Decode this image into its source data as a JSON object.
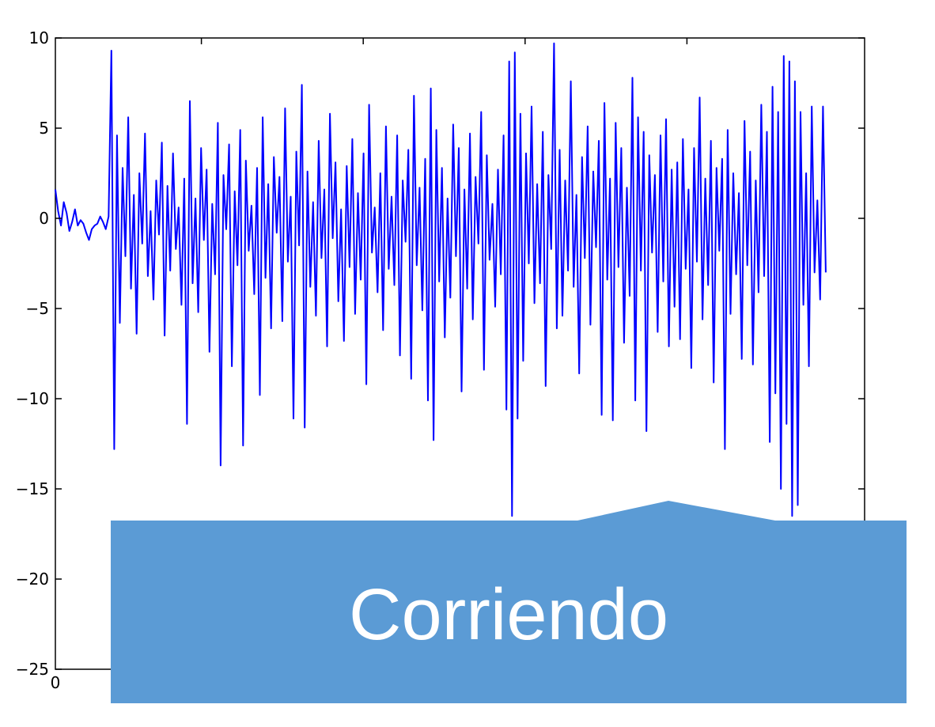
{
  "chart_data": {
    "type": "line",
    "title": "",
    "xlabel": "",
    "ylabel": "",
    "xlim": [
      0,
      1000
    ],
    "ylim": [
      -25,
      10
    ],
    "yticks": [
      10,
      5,
      0,
      -5,
      -10,
      -15,
      -20,
      -25
    ],
    "xticks": [
      0
    ],
    "ytick_labels": [
      "10",
      "5",
      "0",
      "−5",
      "−10",
      "−15",
      "−20",
      "−25"
    ],
    "xtick_labels": [
      "0"
    ],
    "grid": false,
    "legend": "none",
    "series": [
      {
        "color": "#0000ff",
        "description": "noisy signal; near 0 for first ~20 samples, then fluctuates roughly between -5 and 5 with spikes up to ~9.7 and down to ~-16.5",
        "values": [
          1.6,
          0.4,
          -0.4,
          0.9,
          0.3,
          -0.7,
          -0.2,
          0.5,
          -0.4,
          -0.1,
          -0.3,
          -0.8,
          -1.2,
          -0.6,
          -0.4,
          -0.3,
          0.1,
          -0.2,
          -0.6,
          0.1,
          9.3,
          -12.8,
          4.6,
          -5.8,
          2.8,
          -2.1,
          5.6,
          -3.9,
          1.3,
          -6.4,
          2.5,
          -1.4,
          4.7,
          -3.2,
          0.4,
          -4.5,
          2.1,
          -0.9,
          4.2,
          -6.5,
          1.8,
          -2.9,
          3.6,
          -1.7,
          0.6,
          -4.8,
          2.2,
          -11.4,
          6.5,
          -3.6,
          1.1,
          -5.2,
          3.9,
          -1.2,
          2.7,
          -7.4,
          0.8,
          -3.1,
          5.3,
          -13.7,
          2.4,
          -0.6,
          4.1,
          -8.2,
          1.5,
          -2.6,
          4.9,
          -12.6,
          3.2,
          -1.8,
          0.7,
          -4.2,
          2.8,
          -9.8,
          5.6,
          -3.3,
          1.9,
          -6.1,
          3.4,
          -0.8,
          2.3,
          -5.7,
          6.1,
          -2.4,
          1.2,
          -11.1,
          3.7,
          -1.5,
          7.4,
          -11.6,
          2.6,
          -3.8,
          0.9,
          -5.4,
          4.3,
          -2.2,
          1.6,
          -7.1,
          5.8,
          -1.1,
          3.1,
          -4.6,
          0.5,
          -6.8,
          2.9,
          -2.7,
          4.4,
          -5.3,
          1.4,
          -3.4,
          3.6,
          -9.2,
          6.3,
          -1.9,
          0.6,
          -4.1,
          2.5,
          -6.2,
          5.1,
          -2.8,
          1.2,
          -3.7,
          4.6,
          -7.6,
          2.1,
          -1.3,
          3.8,
          -8.9,
          6.8,
          -2.6,
          1.7,
          -5.1,
          3.3,
          -10.1,
          7.2,
          -12.3,
          4.9,
          -3.5,
          2.8,
          -6.6,
          1.1,
          -4.4,
          5.2,
          -2.1,
          3.9,
          -9.6,
          1.6,
          -3.9,
          4.7,
          -5.6,
          2.3,
          -1.4,
          5.9,
          -8.4,
          3.5,
          -2.3,
          0.8,
          -4.9,
          2.7,
          -3.1,
          4.6,
          -10.6,
          8.7,
          -16.5,
          9.2,
          -11.1,
          5.8,
          -7.9,
          3.6,
          -2.5,
          6.2,
          -4.7,
          1.9,
          -3.6,
          4.8,
          -9.3,
          2.4,
          -1.7,
          9.7,
          -6.1,
          3.8,
          -5.4,
          2.1,
          -2.9,
          7.6,
          -3.8,
          1.3,
          -8.6,
          3.4,
          -2.2,
          5.1,
          -5.9,
          2.6,
          -1.6,
          4.3,
          -10.9,
          6.4,
          -3.4,
          2.2,
          -11.2,
          5.3,
          -2.7,
          3.9,
          -6.9,
          1.7,
          -4.3,
          7.8,
          -10.1,
          5.6,
          -2.9,
          4.8,
          -11.8,
          3.5,
          -1.9,
          2.4,
          -6.3,
          4.6,
          -3.5,
          5.5,
          -7.1,
          2.7,
          -4.9,
          3.1,
          -6.7,
          4.4,
          -2.8,
          1.6,
          -8.3,
          3.9,
          -2.4,
          6.7,
          -5.6,
          2.2,
          -3.7,
          4.3,
          -9.1,
          2.8,
          -1.8,
          3.3,
          -12.8,
          4.9,
          -5.3,
          2.5,
          -3.1,
          1.4,
          -7.8,
          5.4,
          -2.6,
          3.7,
          -8.1,
          2.1,
          -4.1,
          6.3,
          -3.2,
          4.8,
          -12.4,
          7.3,
          -9.7,
          5.9,
          -15.0,
          9.0,
          -11.4,
          8.7,
          -16.5,
          7.6,
          -15.9,
          5.9,
          -4.8,
          2.5,
          -8.2,
          6.2,
          -3.0,
          1.0,
          -4.5,
          6.2,
          -3.0
        ]
      }
    ]
  },
  "callout": {
    "label": "Corriendo",
    "fill_color": "#5b9bd5",
    "text_color": "#ffffff"
  }
}
